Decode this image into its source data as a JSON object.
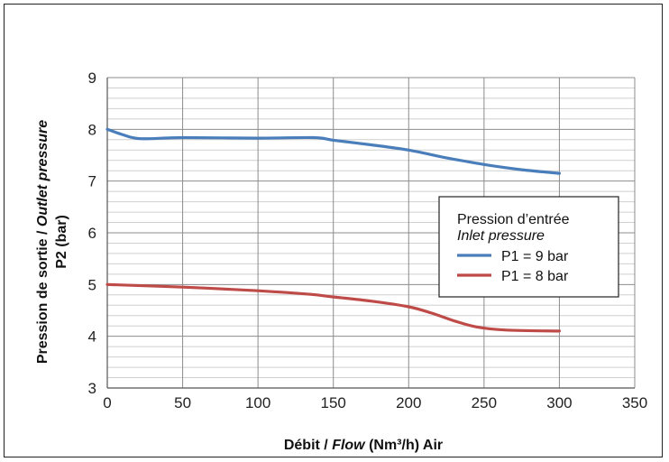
{
  "chart_data": {
    "type": "line",
    "xlabel_parts": [
      {
        "text": "Débit / ",
        "italic": false
      },
      {
        "text": "Flow",
        "italic": true
      },
      {
        "text": " (Nm³/h) Air",
        "italic": false
      }
    ],
    "ylabel_line1_parts": [
      {
        "text": "Pression de sortie / ",
        "italic": false
      },
      {
        "text": "Outlet pressure",
        "italic": true
      }
    ],
    "ylabel_line2": "P2 (bar)",
    "xlim": [
      0,
      350
    ],
    "ylim": [
      3,
      9
    ],
    "x_ticks": [
      "0",
      "50",
      "100",
      "150",
      "200",
      "250",
      "300",
      "350"
    ],
    "y_ticks": [
      "3",
      "4",
      "5",
      "6",
      "7",
      "8",
      "9"
    ],
    "grid": true,
    "legend": {
      "title": "Pression d’entrée",
      "subtitle": "Inlet pressure",
      "placement": "right"
    },
    "series": [
      {
        "name": "P1 = 9 bar",
        "color": "#4a7ebb",
        "points": [
          [
            0,
            8.0
          ],
          [
            10,
            7.9
          ],
          [
            22,
            7.82
          ],
          [
            50,
            7.84
          ],
          [
            100,
            7.83
          ],
          [
            137,
            7.84
          ],
          [
            150,
            7.79
          ],
          [
            175,
            7.7
          ],
          [
            200,
            7.6
          ],
          [
            225,
            7.45
          ],
          [
            250,
            7.32
          ],
          [
            275,
            7.22
          ],
          [
            300,
            7.15
          ]
        ]
      },
      {
        "name": "P1 = 8 bar",
        "color": "#be4b48",
        "points": [
          [
            0,
            5.0
          ],
          [
            50,
            4.95
          ],
          [
            100,
            4.88
          ],
          [
            135,
            4.81
          ],
          [
            150,
            4.76
          ],
          [
            175,
            4.68
          ],
          [
            200,
            4.57
          ],
          [
            215,
            4.45
          ],
          [
            230,
            4.3
          ],
          [
            245,
            4.18
          ],
          [
            265,
            4.12
          ],
          [
            300,
            4.1
          ]
        ]
      }
    ]
  }
}
